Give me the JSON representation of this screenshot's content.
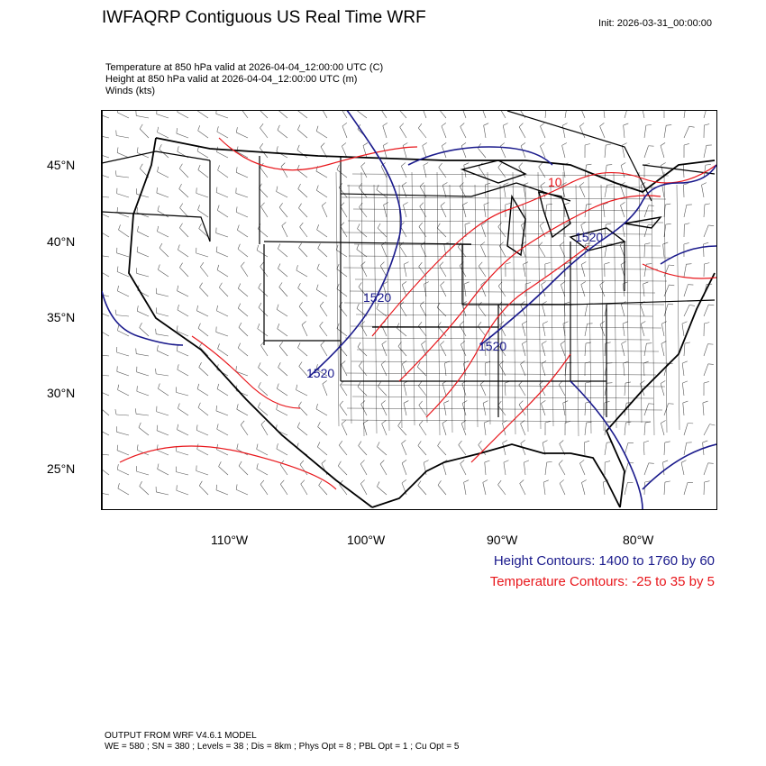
{
  "header": {
    "title": "IWFAQRP Contiguous US Real Time WRF",
    "init": "Init: 2026-03-31_00:00:00"
  },
  "subtitles": [
    "Temperature at 850 hPa valid at 2026-04-04_12:00:00 UTC   (C)",
    "Height at 850 hPa valid at 2026-04-04_12:00:00 UTC   (m)",
    "Winds   (kts)"
  ],
  "map": {
    "lat_labels": [
      "45°N",
      "40°N",
      "35°N",
      "30°N",
      "25°N"
    ],
    "lon_labels": [
      "110°W",
      "100°W",
      "90°W",
      "80°W"
    ],
    "height_contour_labels": [
      "1520",
      "1520",
      "1520",
      "1520"
    ],
    "temperature_contour_label": "10",
    "colors": {
      "height": "#1a1a8c",
      "temperature": "#e8161b",
      "border": "#000000",
      "wind_barb": "#555555"
    }
  },
  "legend": {
    "height": "Height Contours: 1400 to 1760 by 60",
    "temperature": "Temperature Contours: -25 to 35 by 5"
  },
  "footer": {
    "line1": "OUTPUT FROM WRF V4.6.1 MODEL",
    "line2": "WE = 580 ; SN = 380 ; Levels = 38 ; Dis = 8km ; Phys Opt = 8 ; PBL Opt = 1 ; Cu Opt = 5"
  }
}
